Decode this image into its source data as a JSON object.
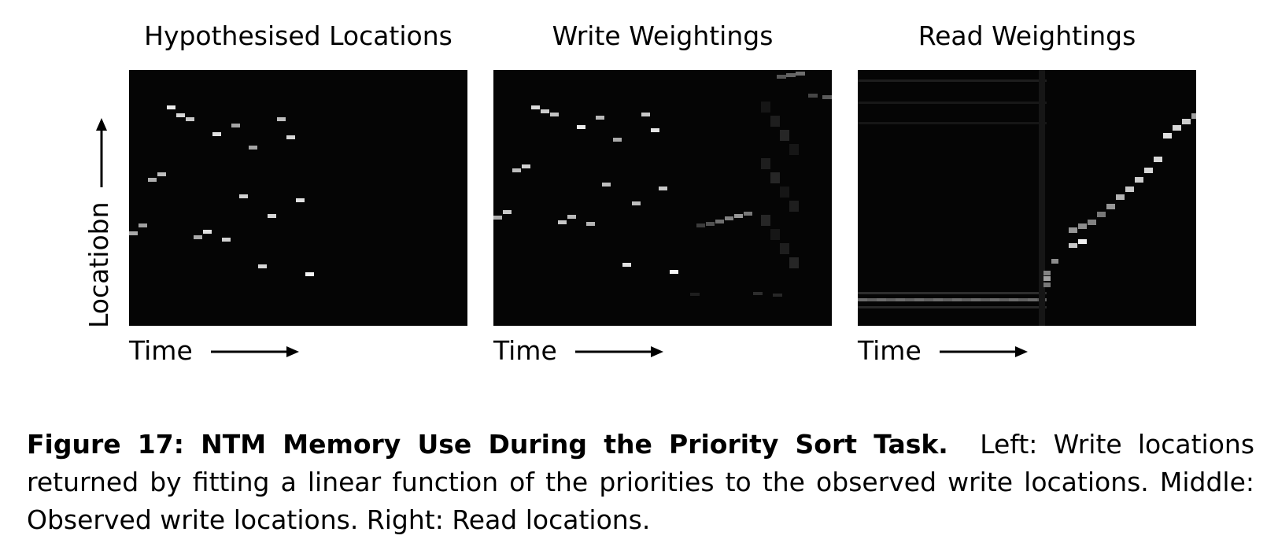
{
  "panels": [
    {
      "title": "Hypothesised Locations",
      "xlabel": "Time"
    },
    {
      "title": "Write Weightings",
      "xlabel": "Time"
    },
    {
      "title": "Read Weightings",
      "xlabel": "Time"
    }
  ],
  "ylabel": "Locatiobn",
  "caption": {
    "label": "Figure 17:  NTM Memory Use During the Priority Sort Task.",
    "text": "Left:  Write locations returned by fitting a linear function of the priorities to the observed write locations.  Middle: Observed write locations. Right: Read locations."
  },
  "colors": {
    "heatmap_background": "#050505",
    "mark_max": "#ffffff",
    "text": "#000000"
  }
}
